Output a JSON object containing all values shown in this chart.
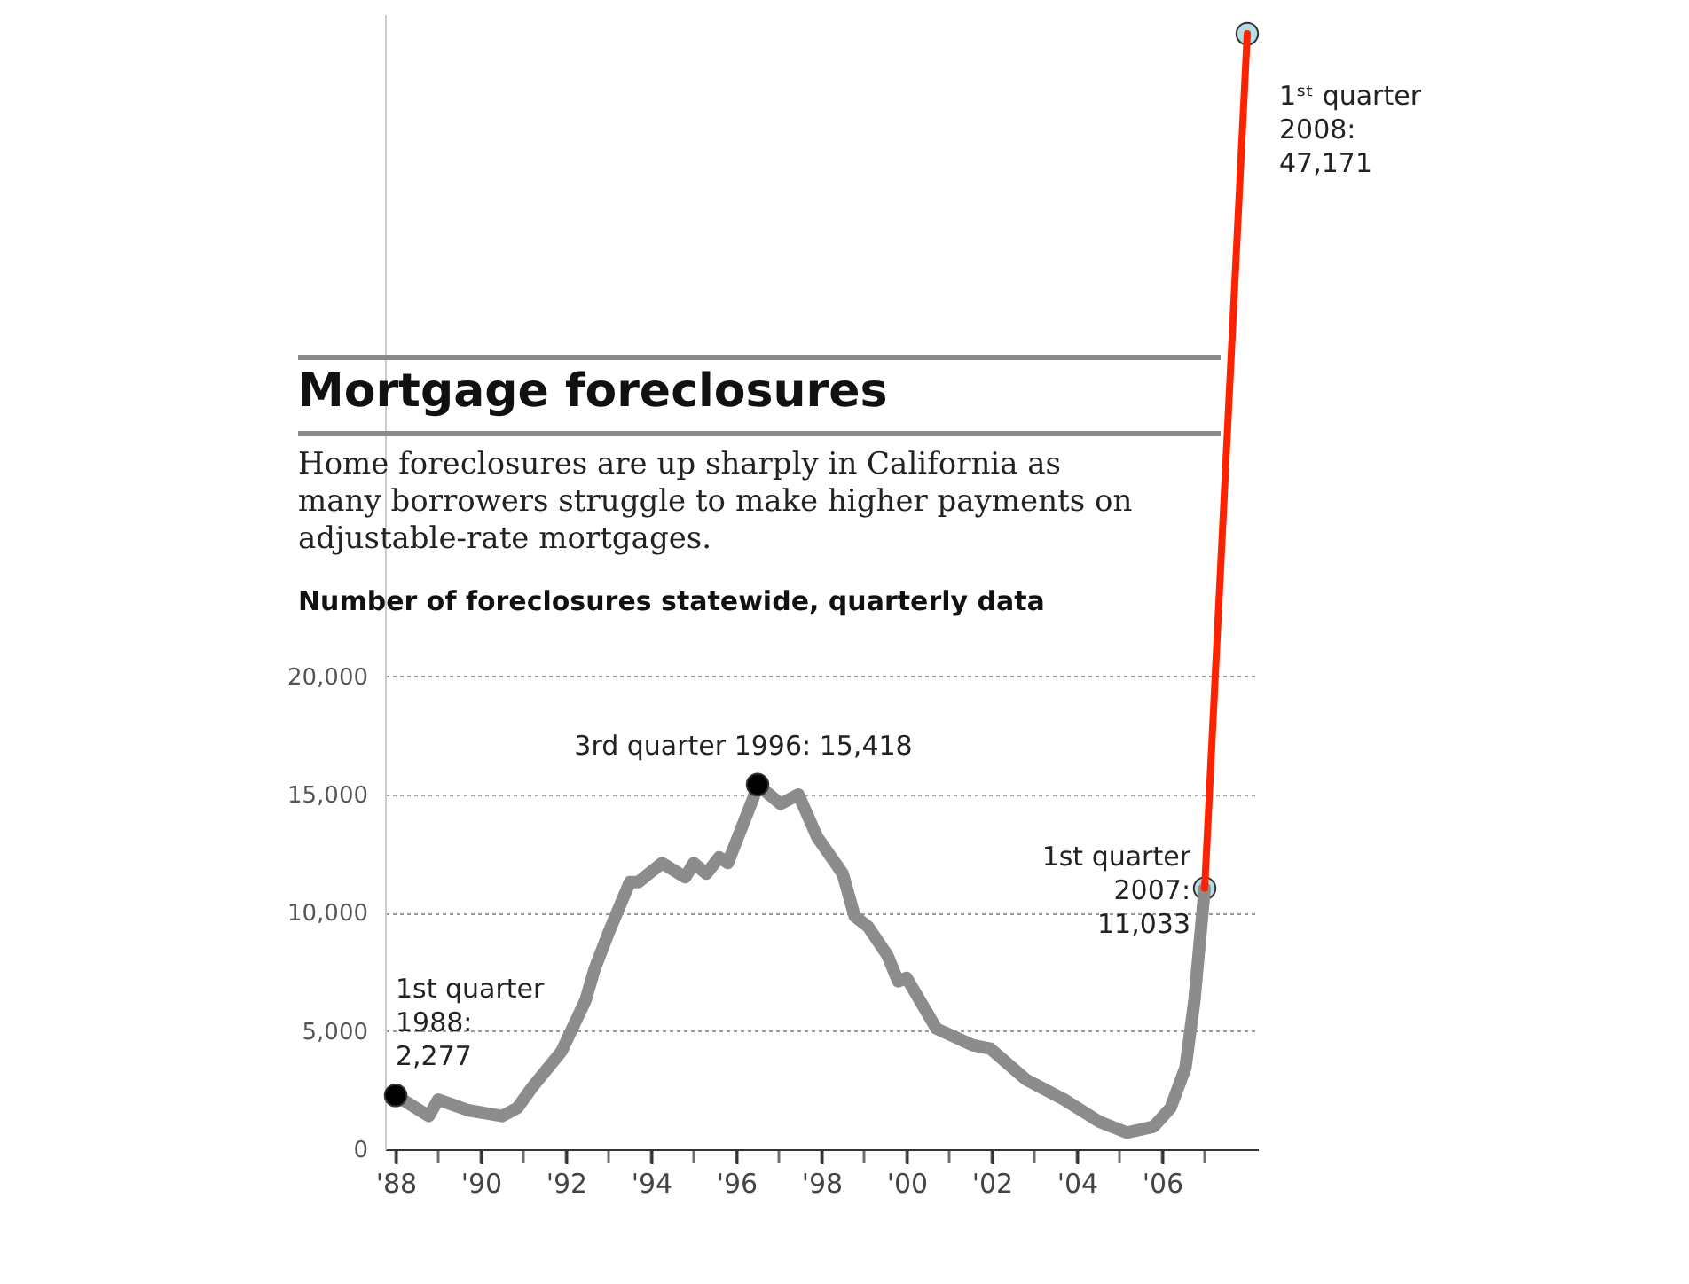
{
  "chart_data": {
    "type": "line",
    "title": "Mortgage foreclosures",
    "subtitle": "Home foreclosures are up sharply in California as many borrowers struggle to make higher payments on adjustable-rate mortgages.",
    "ylabel": "Number of foreclosures statewide, quarterly data",
    "xlim": [
      1987.75,
      2008.25
    ],
    "ylim": [
      0,
      48000
    ],
    "xticks": [
      {
        "value": 1988,
        "label": "'88"
      },
      {
        "value": 1989,
        "label": null
      },
      {
        "value": 1990,
        "label": "'90"
      },
      {
        "value": 1991,
        "label": null
      },
      {
        "value": 1992,
        "label": "'92"
      },
      {
        "value": 1993,
        "label": null
      },
      {
        "value": 1994,
        "label": "'94"
      },
      {
        "value": 1995,
        "label": null
      },
      {
        "value": 1996,
        "label": "'96"
      },
      {
        "value": 1997,
        "label": null
      },
      {
        "value": 1998,
        "label": "'98"
      },
      {
        "value": 1999,
        "label": null
      },
      {
        "value": 2000,
        "label": "'00"
      },
      {
        "value": 2001,
        "label": null
      },
      {
        "value": 2002,
        "label": "'02"
      },
      {
        "value": 2003,
        "label": null
      },
      {
        "value": 2004,
        "label": "'04"
      },
      {
        "value": 2005,
        "label": null
      },
      {
        "value": 2006,
        "label": "'06"
      },
      {
        "value": 2007,
        "label": null
      }
    ],
    "yticks": [
      0,
      {
        "value": 5000,
        "label": "5,000"
      },
      {
        "value": 10000,
        "label": "10,000"
      },
      {
        "value": 15000,
        "label": "15,000"
      },
      {
        "value": 20000,
        "label": "20,000"
      }
    ],
    "grid": "y",
    "series": [
      {
        "type": "line",
        "marker": "none",
        "color": "#8c8c8c",
        "x": [
          1988,
          1988.78,
          1989,
          1989.7,
          1990.5,
          1990.86,
          1991.2,
          1991.9,
          1992.46,
          1992.67,
          1993,
          1993.5,
          1993.7,
          1994.26,
          1994.8,
          1995,
          1995.3,
          1995.6,
          1995.8,
          1996.4,
          1996.5,
          1997.04,
          1997.46,
          1997.9,
          1998.5,
          1998.78,
          1999.1,
          1999.55,
          1999.8,
          2000,
          2000.7,
          2001.55,
          2001.97,
          2002.8,
          2003.7,
          2004.54,
          2005.17,
          2005.8,
          2006.2,
          2006.55,
          2006.76,
          2007
        ],
        "values": [
          2277,
          1400,
          2100,
          1650,
          1400,
          1750,
          2600,
          4150,
          6300,
          7600,
          9150,
          11300,
          11300,
          12100,
          11500,
          12100,
          11650,
          12350,
          12100,
          14850,
          15418,
          14600,
          15000,
          13200,
          11650,
          9850,
          9400,
          8200,
          7100,
          7250,
          5100,
          4400,
          4250,
          2950,
          2100,
          1150,
          700,
          950,
          1750,
          3450,
          6300,
          11033
        ]
      },
      {
        "type": "line",
        "marker": "none",
        "color": "#ff2200",
        "x": [
          2007,
          2008
        ],
        "values": [
          11033,
          47171
        ]
      },
      {
        "type": "scatter",
        "marker": "circle",
        "color": "#000000",
        "x": [
          1988,
          1996.5
        ],
        "values": [
          2277,
          15418
        ]
      },
      {
        "type": "scatter",
        "marker": "circle",
        "color": "#b4dce4",
        "x": [
          2007,
          2008
        ],
        "values": [
          11033,
          47171
        ]
      }
    ],
    "annotations": [
      {
        "text": "1st quarter\n1988:\n2,277",
        "x": 1988,
        "y": 2277
      },
      {
        "text": "3rd quarter 1996: 15,418",
        "x": 1996.5,
        "y": 15418
      },
      {
        "text": "1st quarter\n2007:\n11,033",
        "x": 2007,
        "y": 11033
      },
      {
        "text": "1ˢᵗ quarter\n2008:\n47,171",
        "x": 2008,
        "y": 47171
      }
    ]
  }
}
